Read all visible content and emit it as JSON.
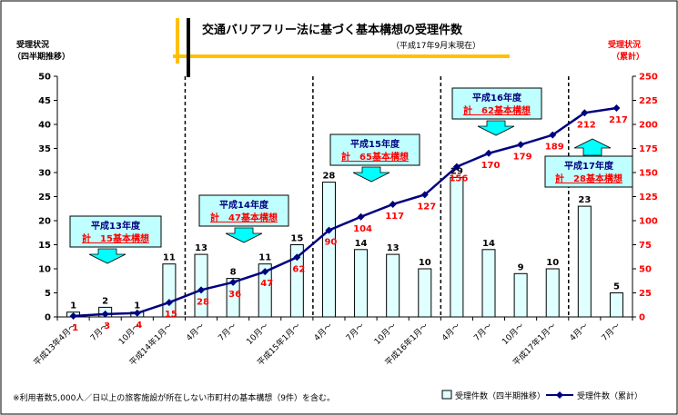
{
  "header": {
    "title": "交通バリアフリー法に基づく基本構想の受理件数",
    "subtitle": "（平成17年9月末現在）",
    "left_axis_label_line1": "受理状況",
    "left_axis_label_line2": "（四半期推移）",
    "right_axis_label_line1": "受理状況",
    "right_axis_label_line2": "（累計）"
  },
  "footnote": "※利用者数5,000人／日以上の旅客施設が所在しない市町村の基本構想（9件）を含む。",
  "callouts": [
    {
      "line1": "平成13年度",
      "line2": "計　15基本構想"
    },
    {
      "line1": "平成14年度",
      "line2": "計　47基本構想"
    },
    {
      "line1": "平成15年度",
      "line2": "計　65基本構想"
    },
    {
      "line1": "平成16年度",
      "line2": "計　62基本構想"
    },
    {
      "line1": "平成17年度",
      "line2": "計　28基本構想"
    }
  ],
  "colors": {
    "bar_fill": "#E0FFFF",
    "bar_stroke": "#000000",
    "line": "#000080",
    "cumulative_label": "#FF0000",
    "right_axis": "#FF0000",
    "callout_fill": "#C0FFFF",
    "callout_text": "#000080",
    "callout_total": "#FF0000",
    "arrow": "#00FFFF",
    "title_bar": "#FFC000"
  },
  "chart_data": {
    "type": "bar",
    "categories": [
      "平成13年4月～",
      "7月～",
      "10月～",
      "平成14年1月～",
      "4月～",
      "7月～",
      "10月～",
      "平成15年1月～",
      "4月～",
      "7月～",
      "10月～",
      "平成16年1月～",
      "4月～",
      "7月～",
      "10月～",
      "平成17年1月～",
      "4月～",
      "7月～"
    ],
    "series": [
      {
        "name": "受理件数（四半期推移）",
        "type": "bar",
        "axis": "left",
        "values": [
          1,
          2,
          1,
          11,
          13,
          8,
          11,
          15,
          28,
          14,
          13,
          10,
          29,
          14,
          9,
          10,
          23,
          5
        ]
      },
      {
        "name": "受理件数（累計）",
        "type": "line",
        "axis": "right",
        "values": [
          1,
          3,
          4,
          15,
          28,
          36,
          47,
          62,
          90,
          104,
          117,
          127,
          156,
          170,
          179,
          189,
          212,
          217
        ]
      }
    ],
    "ylim_left": [
      0,
      50
    ],
    "yticks_left": [
      0,
      5,
      10,
      15,
      20,
      25,
      30,
      35,
      40,
      45,
      50
    ],
    "ylim_right": [
      0,
      250
    ],
    "yticks_right": [
      0,
      25,
      50,
      75,
      100,
      125,
      150,
      175,
      200,
      225,
      250
    ],
    "year_dividers_after_index": [
      3,
      7,
      11,
      15
    ],
    "grid": false,
    "legend": "bottom-right"
  }
}
